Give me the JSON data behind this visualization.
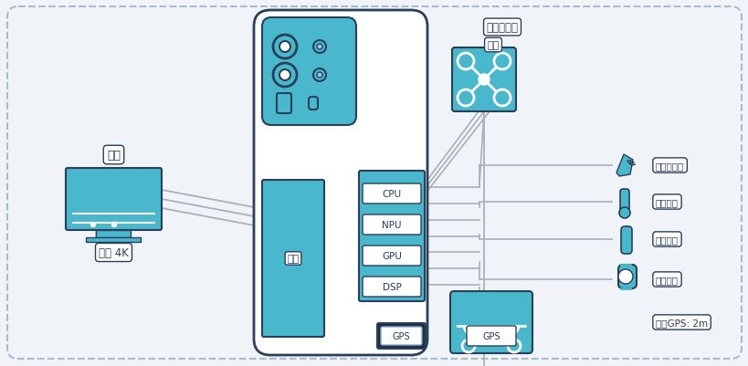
{
  "bg_color": "#f0f4f8",
  "border_color": "#aabbcc",
  "teal": "#4ab8cc",
  "navy": "#2a3f5a",
  "gps_dark": "#1e2d45",
  "line_gray": "#aab0b8",
  "white": "#ffffff",
  "label_border": "#3a7090",
  "cpu_labels": [
    "CPU",
    "NPU",
    "GPU",
    "DSP"
  ],
  "tv_label": "电视",
  "screen_4k_label": "屏帼 4K",
  "screen_inner_label": "屏帼",
  "drone_label1": "外部摄像头",
  "drone_label2": "航拍",
  "gps_text": "GPS",
  "sensor_labels": [
    "超声波检测",
    "环境检测",
    "糖份检测",
    "心率检测"
  ],
  "car_gps_label": "车载GPS: 2m"
}
